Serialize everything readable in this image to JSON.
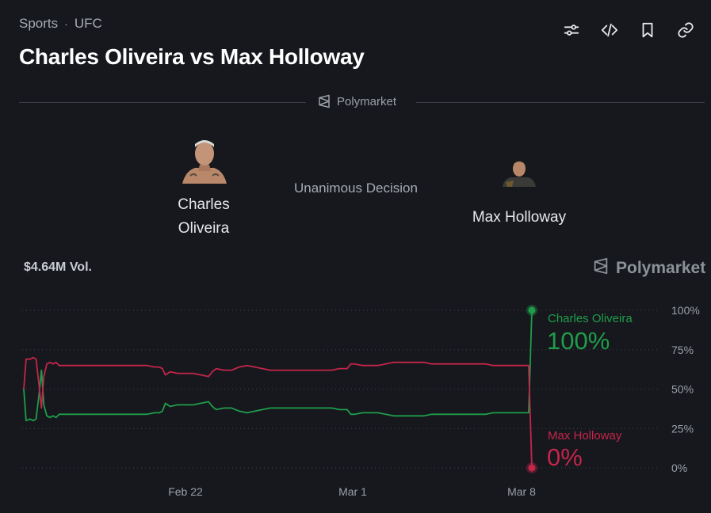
{
  "breadcrumb": {
    "items": [
      "Sports",
      "UFC"
    ],
    "separator": "·"
  },
  "title": "Charles Oliveira vs Max Holloway",
  "toolbar": {
    "icons": [
      "sliders-icon",
      "code-icon",
      "bookmark-icon",
      "link-icon"
    ]
  },
  "brand": {
    "name": "Polymarket"
  },
  "fighters": [
    {
      "name_line1": "Charles",
      "name_line2": "Oliveira"
    },
    {
      "name": "Max Holloway"
    }
  ],
  "result": "Unanimous Decision",
  "volume": "$4.64M Vol.",
  "watermark": "Polymarket",
  "colors": {
    "oliveira": "#1f9d4a",
    "holloway": "#c4254a",
    "background": "#16181d"
  },
  "chart_data": {
    "type": "line",
    "x_ticks": [
      "Feb 22",
      "Mar 1",
      "Mar 8"
    ],
    "x_range": [
      "Feb 12",
      "Mar 8"
    ],
    "y_ticks": [
      "100%",
      "75%",
      "50%",
      "25%",
      "0%"
    ],
    "ylim": [
      0,
      100
    ],
    "grid": "dotted horizontal",
    "legend_placement": "right, at line ends",
    "series": [
      {
        "name": "Charles Oliveira",
        "color": "#1f9d4a",
        "final_label": "100%",
        "points": [
          [
            0,
            50
          ],
          [
            0.3,
            30
          ],
          [
            0.8,
            31
          ],
          [
            1.2,
            30
          ],
          [
            1.6,
            31
          ],
          [
            2.0,
            47
          ],
          [
            2.3,
            62
          ],
          [
            2.6,
            40
          ],
          [
            3.0,
            33
          ],
          [
            3.4,
            32
          ],
          [
            3.8,
            33
          ],
          [
            4.2,
            32
          ],
          [
            4.6,
            34
          ],
          [
            5,
            34
          ],
          [
            6,
            34
          ],
          [
            7,
            34
          ],
          [
            8,
            34
          ],
          [
            9,
            34
          ],
          [
            10,
            34
          ],
          [
            11,
            34
          ],
          [
            12,
            34
          ],
          [
            13,
            34
          ],
          [
            14,
            34
          ],
          [
            15,
            34
          ],
          [
            16,
            34
          ],
          [
            17,
            35
          ],
          [
            17.6,
            35
          ],
          [
            18,
            36
          ],
          [
            18.4,
            41
          ],
          [
            19,
            39
          ],
          [
            20,
            40
          ],
          [
            21,
            40
          ],
          [
            22,
            40
          ],
          [
            23,
            41
          ],
          [
            24,
            42
          ],
          [
            24.5,
            39
          ],
          [
            25,
            37
          ],
          [
            26,
            38
          ],
          [
            27,
            38
          ],
          [
            28,
            36
          ],
          [
            29,
            35
          ],
          [
            30,
            36
          ],
          [
            31,
            37
          ],
          [
            32,
            38
          ],
          [
            33,
            38
          ],
          [
            34,
            38
          ],
          [
            35,
            38
          ],
          [
            36,
            38
          ],
          [
            37,
            38
          ],
          [
            38,
            38
          ],
          [
            39,
            38
          ],
          [
            40,
            38
          ],
          [
            41,
            37
          ],
          [
            42,
            37
          ],
          [
            42.5,
            34
          ],
          [
            43,
            34
          ],
          [
            44,
            35
          ],
          [
            45,
            35
          ],
          [
            46,
            35
          ],
          [
            47,
            34
          ],
          [
            48,
            33
          ],
          [
            49,
            33
          ],
          [
            50,
            33
          ],
          [
            51,
            33
          ],
          [
            52,
            33
          ],
          [
            53,
            34
          ],
          [
            54,
            34
          ],
          [
            55,
            34
          ],
          [
            56,
            34
          ],
          [
            57,
            34
          ],
          [
            58,
            34
          ],
          [
            59,
            34
          ],
          [
            60,
            34
          ],
          [
            61,
            35
          ],
          [
            62,
            35
          ],
          [
            63,
            35
          ],
          [
            64,
            35
          ],
          [
            65,
            35
          ],
          [
            65.8,
            35
          ],
          [
            65.9,
            35
          ],
          [
            66.0,
            100
          ]
        ]
      },
      {
        "name": "Max Holloway",
        "color": "#c4254a",
        "final_label": "0%",
        "points": [
          [
            0,
            50
          ],
          [
            0.3,
            69
          ],
          [
            0.8,
            69
          ],
          [
            1.2,
            70
          ],
          [
            1.6,
            69
          ],
          [
            2.0,
            52
          ],
          [
            2.3,
            38
          ],
          [
            2.6,
            58
          ],
          [
            3.0,
            66
          ],
          [
            3.4,
            67
          ],
          [
            3.8,
            66
          ],
          [
            4.2,
            67
          ],
          [
            4.6,
            65
          ],
          [
            5,
            65
          ],
          [
            6,
            65
          ],
          [
            7,
            65
          ],
          [
            8,
            65
          ],
          [
            9,
            65
          ],
          [
            10,
            65
          ],
          [
            11,
            65
          ],
          [
            12,
            65
          ],
          [
            13,
            65
          ],
          [
            14,
            65
          ],
          [
            15,
            65
          ],
          [
            16,
            65
          ],
          [
            17,
            64
          ],
          [
            17.6,
            64
          ],
          [
            18,
            63
          ],
          [
            18.4,
            59
          ],
          [
            19,
            61
          ],
          [
            20,
            60
          ],
          [
            21,
            60
          ],
          [
            22,
            60
          ],
          [
            23,
            59
          ],
          [
            24,
            58
          ],
          [
            24.5,
            61
          ],
          [
            25,
            63
          ],
          [
            26,
            62
          ],
          [
            27,
            62
          ],
          [
            28,
            64
          ],
          [
            29,
            65
          ],
          [
            30,
            64
          ],
          [
            31,
            63
          ],
          [
            32,
            62
          ],
          [
            33,
            62
          ],
          [
            34,
            62
          ],
          [
            35,
            62
          ],
          [
            36,
            62
          ],
          [
            37,
            62
          ],
          [
            38,
            62
          ],
          [
            39,
            62
          ],
          [
            40,
            62
          ],
          [
            41,
            63
          ],
          [
            42,
            63
          ],
          [
            42.5,
            66
          ],
          [
            43,
            66
          ],
          [
            44,
            65
          ],
          [
            45,
            65
          ],
          [
            46,
            65
          ],
          [
            47,
            66
          ],
          [
            48,
            67
          ],
          [
            49,
            67
          ],
          [
            50,
            67
          ],
          [
            51,
            67
          ],
          [
            52,
            67
          ],
          [
            53,
            66
          ],
          [
            54,
            66
          ],
          [
            55,
            66
          ],
          [
            56,
            66
          ],
          [
            57,
            66
          ],
          [
            58,
            66
          ],
          [
            59,
            66
          ],
          [
            60,
            66
          ],
          [
            61,
            65
          ],
          [
            62,
            65
          ],
          [
            63,
            65
          ],
          [
            64,
            65
          ],
          [
            65,
            65
          ],
          [
            65.8,
            65
          ],
          [
            65.9,
            65
          ],
          [
            66.0,
            0
          ]
        ]
      }
    ]
  }
}
